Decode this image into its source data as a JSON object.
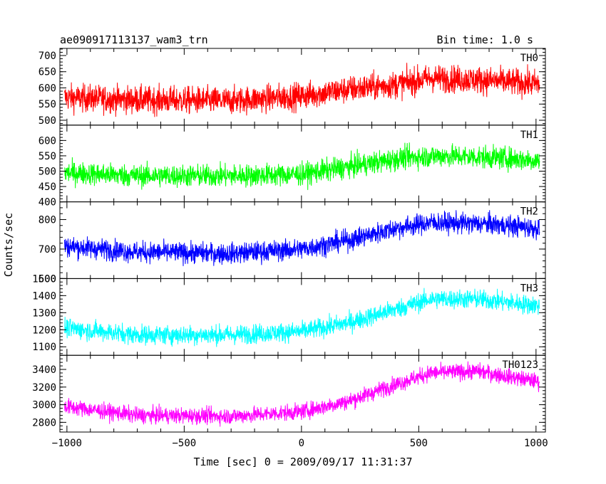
{
  "header": {
    "title": "ae090917113137_wam3_trn",
    "bin_time": "Bin time: 1.0 s"
  },
  "chart_data": {
    "type": "line",
    "xlabel": "Time [sec] 0 = 2009/09/17 11:31:37",
    "ylabel": "Counts/sec",
    "xlim": [
      -1030,
      1040
    ],
    "x_ticks": [
      -1000,
      -500,
      0,
      500,
      1000
    ],
    "x_tick_labels": [
      "−1000",
      "−500",
      "0",
      "500",
      "1000"
    ],
    "panels": [
      {
        "name": "TH0",
        "color": "#ff0000",
        "ylim": [
          485,
          722
        ],
        "y_ticks": [
          500,
          550,
          600,
          650,
          700
        ],
        "y_tick_labels": [
          "500",
          "550",
          "600",
          "650",
          "700"
        ],
        "profile": [
          [
            -1010,
            570
          ],
          [
            -700,
            563
          ],
          [
            -300,
            560
          ],
          [
            0,
            575
          ],
          [
            200,
            595
          ],
          [
            400,
            610
          ],
          [
            550,
            630
          ],
          [
            750,
            625
          ],
          [
            1015,
            612
          ]
        ],
        "noise": 30
      },
      {
        "name": "TH1",
        "color": "#00ff00",
        "ylim": [
          400,
          650
        ],
        "y_ticks": [
          400,
          450,
          500,
          550,
          600
        ],
        "y_tick_labels": [
          "400",
          "450",
          "500",
          "550",
          "600"
        ],
        "profile": [
          [
            -1010,
            495
          ],
          [
            -700,
            485
          ],
          [
            -300,
            485
          ],
          [
            0,
            490
          ],
          [
            250,
            520
          ],
          [
            450,
            545
          ],
          [
            600,
            550
          ],
          [
            800,
            545
          ],
          [
            1015,
            535
          ]
        ],
        "noise": 26
      },
      {
        "name": "TH2",
        "color": "#0000ff",
        "ylim": [
          600,
          860
        ],
        "y_ticks": [
          600,
          700,
          800
        ],
        "y_tick_labels": [
          "600",
          "700",
          "800"
        ],
        "profile": [
          [
            -1010,
            710
          ],
          [
            -700,
            690
          ],
          [
            -300,
            685
          ],
          [
            0,
            700
          ],
          [
            200,
            730
          ],
          [
            400,
            770
          ],
          [
            550,
            790
          ],
          [
            800,
            785
          ],
          [
            1015,
            770
          ]
        ],
        "noise": 25
      },
      {
        "name": "TH3",
        "color": "#00ffff",
        "ylim": [
          1050,
          1500
        ],
        "y_ticks": [
          1100,
          1200,
          1300,
          1400,
          1500
        ],
        "y_tick_labels": [
          "1100",
          "1200",
          "1300",
          "1400",
          "1500"
        ],
        "profile": [
          [
            -1010,
            1210
          ],
          [
            -700,
            1170
          ],
          [
            -300,
            1170
          ],
          [
            0,
            1190
          ],
          [
            200,
            1240
          ],
          [
            400,
            1320
          ],
          [
            550,
            1380
          ],
          [
            750,
            1380
          ],
          [
            1015,
            1340
          ]
        ],
        "noise": 40
      },
      {
        "name": "TH0123",
        "color": "#ff00ff",
        "ylim": [
          2690,
          3560
        ],
        "y_ticks": [
          2800,
          3000,
          3200,
          3400
        ],
        "y_tick_labels": [
          "2800",
          "3000",
          "3200",
          "3400"
        ],
        "profile": [
          [
            -1010,
            2980
          ],
          [
            -700,
            2880
          ],
          [
            -300,
            2870
          ],
          [
            0,
            2920
          ],
          [
            200,
            3040
          ],
          [
            400,
            3230
          ],
          [
            550,
            3360
          ],
          [
            750,
            3380
          ],
          [
            1015,
            3260
          ]
        ],
        "noise": 65
      }
    ]
  }
}
